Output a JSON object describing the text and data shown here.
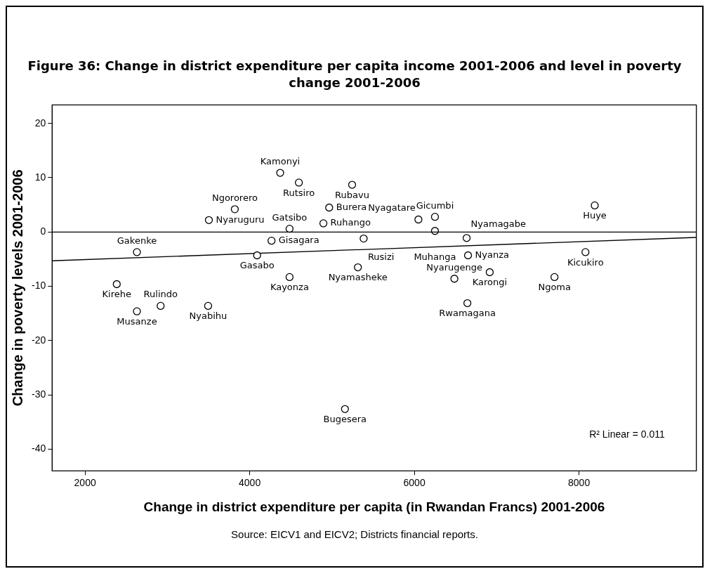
{
  "chart_data": {
    "type": "scatter",
    "title": "Figure 36: Change in district expenditure per capita income 2001-2006 and level in poverty change 2001-2006",
    "xlabel": "Change in district expenditure per capita (in Rwandan Francs) 2001-2006",
    "ylabel": "Change in poverty levels 2001-2006",
    "annotations": [
      "R² Linear = 0.011",
      "Source: EICV1 and EICV2; Districts financial reports."
    ],
    "xlim": [
      1600,
      9425
    ],
    "ylim": [
      -44,
      23.4
    ],
    "xticks": [
      2000,
      4000,
      6000,
      8000
    ],
    "yticks": [
      -40,
      -30,
      -20,
      -10,
      0,
      10,
      20
    ],
    "grid": false,
    "legend": false,
    "marker": "circle",
    "ref_lines": [
      {
        "axis": "y",
        "value": 0,
        "color": "#000000"
      }
    ],
    "series": [
      {
        "type": "scatter",
        "color": "#000000",
        "x": [
          4370,
          4597,
          5244,
          4965,
          3819,
          3504,
          4484,
          4895,
          6049,
          6250,
          6250,
          6635,
          4265,
          5384,
          2630,
          4090,
          4484,
          5314,
          6652,
          6915,
          6486,
          6644,
          7702,
          8078,
          8191,
          2385,
          2630,
          2918,
          3495,
          5157
        ],
        "values": [
          10.9,
          9.1,
          8.7,
          4.5,
          4.2,
          2.2,
          0.6,
          1.6,
          2.3,
          2.8,
          0.2,
          -1.1,
          -1.6,
          -1.2,
          -3.7,
          -4.3,
          -8.3,
          -6.5,
          -4.3,
          -7.4,
          -8.6,
          -13.1,
          -8.3,
          -3.7,
          4.9,
          -9.6,
          -14.6,
          -13.6,
          -13.6,
          -32.6
        ],
        "value_labels": [
          "Kamonyi",
          "Rutsiro",
          "Rubavu",
          "Burera",
          "Ngororero",
          "Nyaruguru",
          "Gatsibo",
          "Ruhango",
          "Nyagatare",
          "Gicumbi",
          "Muhanga",
          "Nyamagabe",
          "Gisagara",
          "Rusizi",
          "Gakenke",
          "Gasabo",
          "Kayonza",
          "Nyamasheke",
          "Nyanza",
          "Karongi",
          "Nyarugenge",
          "Rwamagana",
          "Ngoma",
          "Kicukiro",
          "Huye",
          "Kirehe",
          "Musanze",
          "Rulindo",
          "Nyabihu",
          "Bugesera"
        ]
      },
      {
        "type": "line",
        "color": "#000000",
        "x": [
          1600,
          9425
        ],
        "values": [
          -5.3,
          -1.0
        ],
        "marker": "none"
      }
    ]
  }
}
